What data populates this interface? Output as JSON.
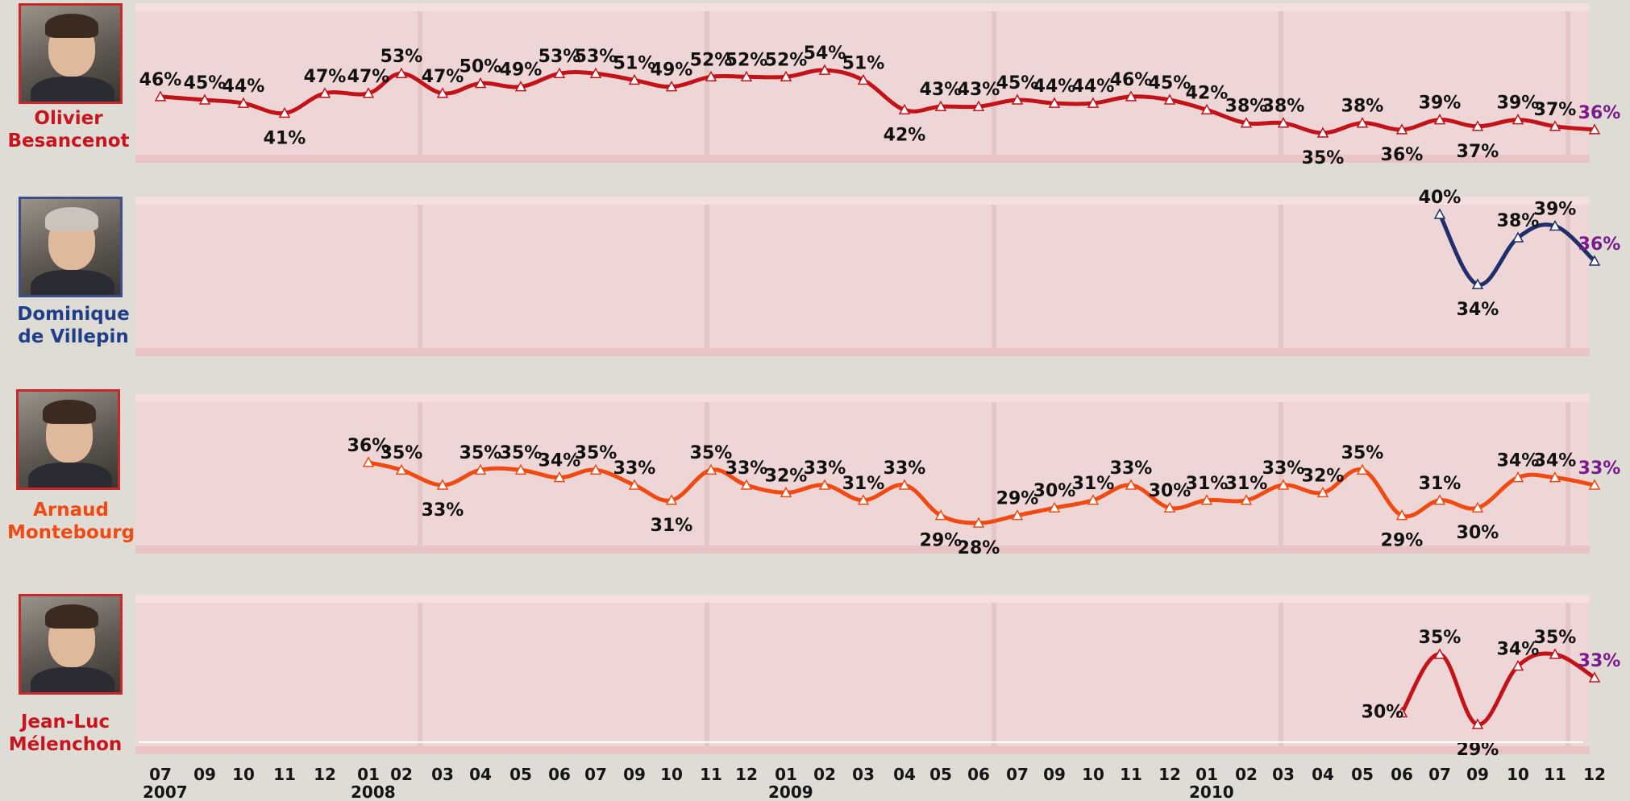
{
  "colors": {
    "besancenot": "#c41219",
    "villepin": "#1e2f6b",
    "montebourg": "#f04a12",
    "melenchon": "#c41219",
    "last_label": "#7a1a8c",
    "label": "#111111"
  },
  "people": [
    {
      "first": "Olivier",
      "last": "Besancenot",
      "color": "red"
    },
    {
      "first": "Dominique",
      "last": "de Villepin",
      "color": "blue"
    },
    {
      "first": "Arnaud",
      "last": "Montebourg",
      "color": "orange"
    },
    {
      "first": "Jean-Luc",
      "last": "Mélenchon",
      "color": "red"
    }
  ],
  "chart_data": {
    "type": "line",
    "x_ticks": [
      "07",
      "09",
      "10",
      "11",
      "12",
      "01",
      "02",
      "03",
      "04",
      "05",
      "06",
      "07",
      "09",
      "10",
      "11",
      "12",
      "01",
      "02",
      "03",
      "04",
      "05",
      "06",
      "07",
      "09",
      "10",
      "11",
      "12",
      "01",
      "02",
      "03",
      "04",
      "05",
      "06",
      "07",
      "09",
      "10",
      "11",
      "12"
    ],
    "year_labels": [
      {
        "label": "2007",
        "index": 0
      },
      {
        "label": "2008",
        "index": 5
      },
      {
        "label": "2009",
        "index": 16
      },
      {
        "label": "2010",
        "index": 27
      }
    ],
    "series": [
      {
        "name": "Olivier Besancenot",
        "start": 0,
        "values": [
          46,
          45,
          44,
          41,
          47,
          47,
          53,
          47,
          50,
          49,
          53,
          53,
          51,
          49,
          52,
          52,
          52,
          54,
          51,
          42,
          43,
          43,
          45,
          44,
          44,
          46,
          45,
          42,
          38,
          38,
          35,
          38,
          36,
          39,
          37,
          39,
          37,
          36
        ]
      },
      {
        "name": "Dominique de Villepin",
        "start": 33,
        "values": [
          40,
          34,
          38,
          39,
          36
        ]
      },
      {
        "name": "Arnaud Montebourg",
        "start": 5,
        "values": [
          36,
          35,
          33,
          35,
          35,
          34,
          35,
          33,
          31,
          35,
          33,
          32,
          33,
          31,
          33,
          29,
          28,
          29,
          30,
          31,
          33,
          30,
          31,
          31,
          33,
          32,
          35,
          29,
          31,
          30,
          34,
          34,
          33
        ]
      },
      {
        "name": "Jean-Luc Mélenchon",
        "start": 32,
        "values": [
          30,
          35,
          29,
          34,
          35,
          33
        ]
      }
    ]
  }
}
